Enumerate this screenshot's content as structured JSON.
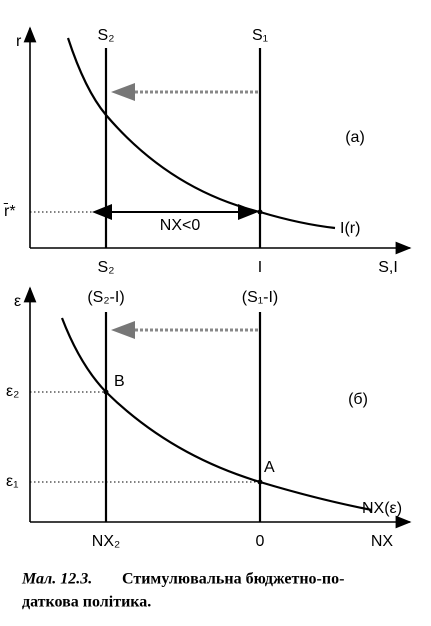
{
  "top": {
    "y_axis": "r",
    "line_left": "S₂",
    "line_right": "S₁",
    "panel_label": "(a)",
    "r_star": "r̄*",
    "gap_label": "NX<0",
    "curve_label": "I(r)",
    "x_left": "S₂",
    "x_right": "I",
    "x_axis": "S,I"
  },
  "bottom": {
    "y_axis": "ε",
    "line_left": "(S₂-I)",
    "line_right": "(S₁-I)",
    "eps2": "ε₂",
    "point_b": "B",
    "panel_label": "(б)",
    "eps1": "ε₁",
    "point_a": "A",
    "curve_label": "NX(ε)",
    "x_left": "NX₂",
    "x_right": "0",
    "x_axis": "NX"
  },
  "caption": {
    "label": "Мал. 12.3.",
    "lines": [
      "Стимулювальна бюджетно-по-",
      "даткова політика."
    ]
  }
}
